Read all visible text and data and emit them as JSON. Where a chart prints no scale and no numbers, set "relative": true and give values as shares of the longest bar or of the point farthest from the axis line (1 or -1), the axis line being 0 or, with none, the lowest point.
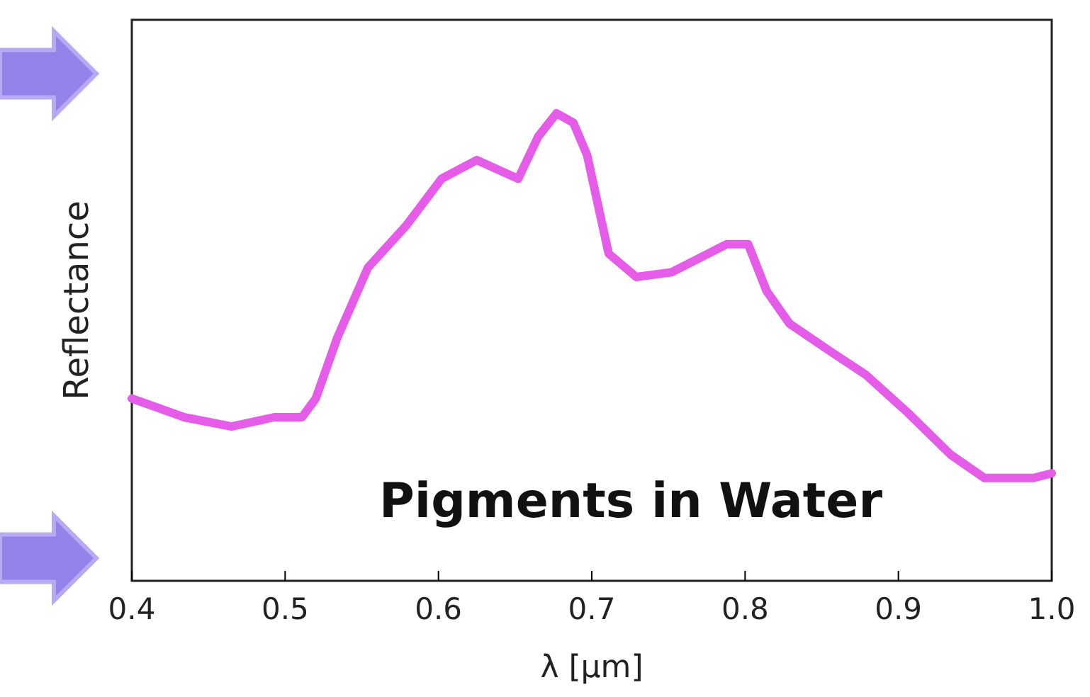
{
  "chart_data": {
    "type": "line",
    "relative": true,
    "xlabel": "λ [μm]",
    "ylabel": "Reflectance",
    "annotations": [
      "Pigments in Water"
    ],
    "xlim": [
      0.4,
      1.0
    ],
    "xticks": [
      {
        "value": 0.4,
        "label": "0.4"
      },
      0.5,
      0.6,
      0.7,
      0.8,
      0.9,
      {
        "value": 1.0,
        "label": "1.0"
      }
    ],
    "x": [
      0.4,
      0.434,
      0.465,
      0.493,
      0.511,
      0.52,
      0.534,
      0.554,
      0.579,
      0.602,
      0.625,
      0.652,
      0.665,
      0.677,
      0.688,
      0.697,
      0.711,
      0.729,
      0.752,
      0.77,
      0.788,
      0.802,
      0.814,
      0.829,
      0.856,
      0.879,
      0.906,
      0.934,
      0.956,
      0.988,
      1.0
    ],
    "series": [
      {
        "color": "#e45ce8",
        "values": [
          0.39,
          0.35,
          0.33,
          0.35,
          0.35,
          0.39,
          0.52,
          0.67,
          0.76,
          0.86,
          0.9,
          0.86,
          0.95,
          1.0,
          0.98,
          0.91,
          0.7,
          0.65,
          0.66,
          0.69,
          0.72,
          0.72,
          0.62,
          0.55,
          0.49,
          0.44,
          0.36,
          0.27,
          0.22,
          0.22,
          0.23
        ]
      }
    ],
    "marker": "none",
    "line_style": "solid"
  }
}
